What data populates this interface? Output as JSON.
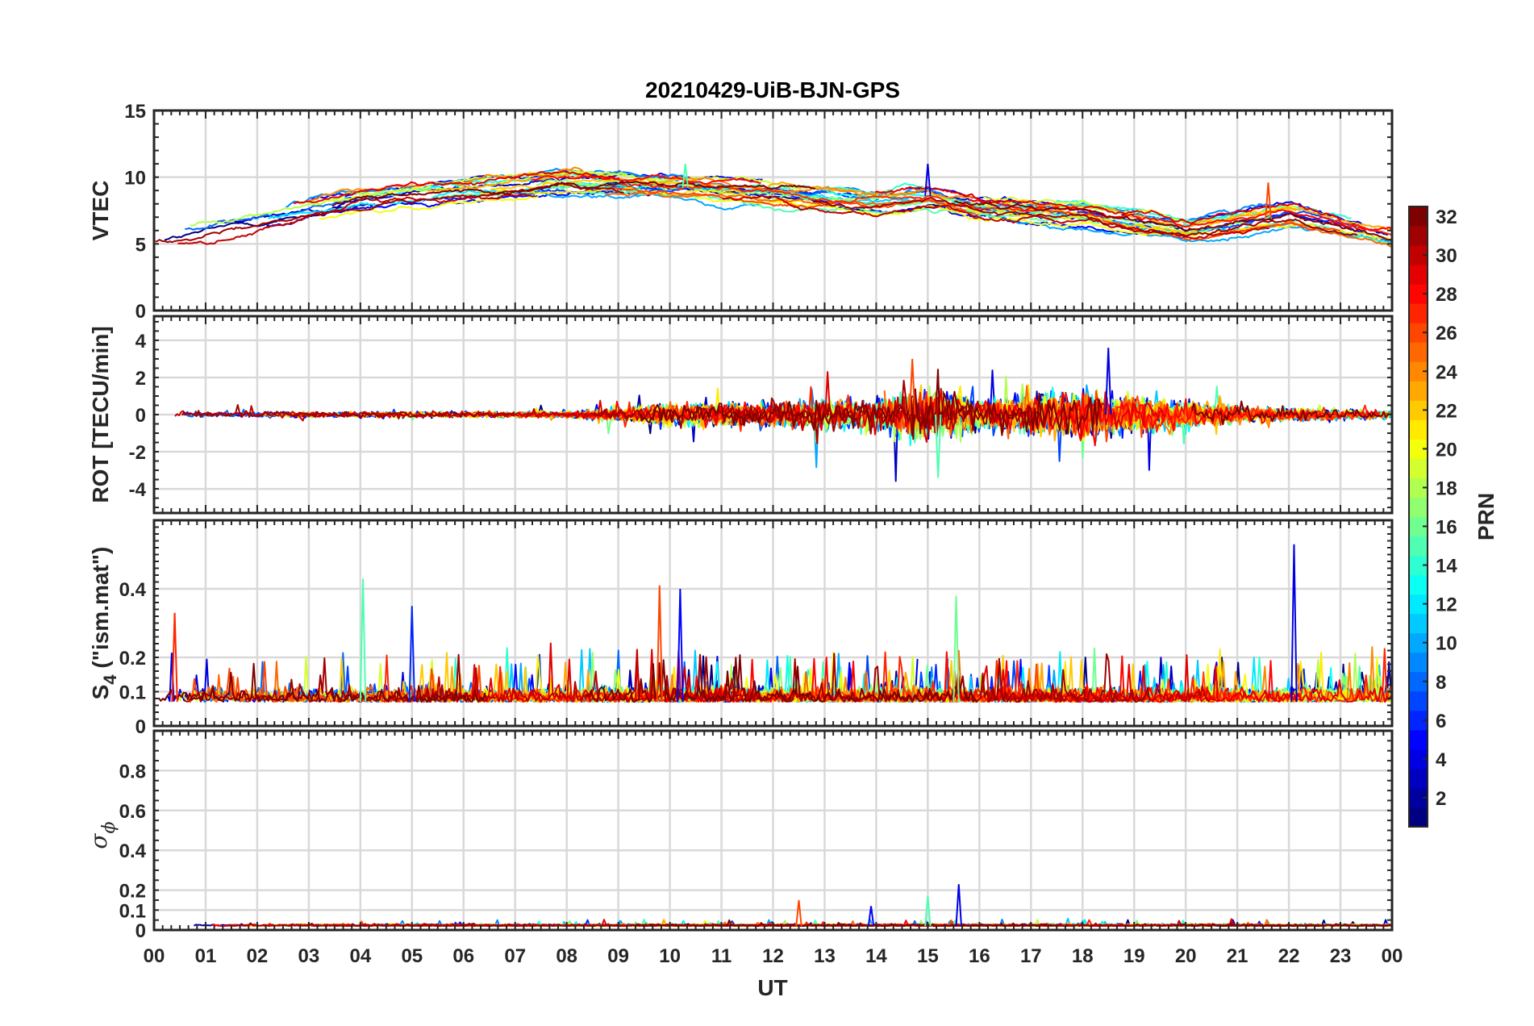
{
  "chart_data": {
    "type": "line",
    "title": "20210429-UiB-BJN-GPS",
    "xlabel": "UT",
    "x_ticks": [
      "00",
      "01",
      "02",
      "03",
      "04",
      "05",
      "06",
      "07",
      "08",
      "09",
      "10",
      "11",
      "12",
      "13",
      "14",
      "15",
      "16",
      "17",
      "18",
      "19",
      "20",
      "21",
      "22",
      "23",
      "00"
    ],
    "xlim": [
      0,
      24
    ],
    "colorbar": {
      "label": "PRN",
      "range": [
        1,
        32
      ],
      "ticks": [
        "2",
        "4",
        "6",
        "8",
        "10",
        "12",
        "14",
        "16",
        "18",
        "20",
        "22",
        "24",
        "26",
        "28",
        "30",
        "32"
      ],
      "colormap": "jet"
    },
    "panels": [
      {
        "id": "vtec",
        "ylabel": "VTEC",
        "ylim": [
          0,
          15
        ],
        "y_ticks": [
          "0",
          "5",
          "10",
          "15"
        ],
        "y_tick_values": [
          0,
          5,
          10,
          15
        ],
        "envelope": {
          "hours": [
            0,
            2,
            4,
            6,
            8,
            10,
            12,
            14,
            15,
            16,
            18,
            20,
            22,
            24
          ],
          "mean_vtec": [
            5.5,
            6.8,
            8.2,
            8.9,
            9.7,
            9.3,
            8.8,
            8.2,
            8.6,
            7.8,
            7.4,
            6.0,
            7.2,
            5.6
          ]
        },
        "notable_peaks": [
          {
            "hour": 15.0,
            "value": 11.0
          },
          {
            "hour": 10.3,
            "value": 11.0
          },
          {
            "hour": 21.6,
            "value": 9.6
          }
        ]
      },
      {
        "id": "rot",
        "ylabel": "ROT [TECU/min]",
        "ylim": [
          -5.3,
          5.3
        ],
        "y_ticks": [
          "4",
          "2",
          "0",
          "-2",
          "-4"
        ],
        "y_tick_values": [
          4,
          2,
          0,
          -2,
          -4
        ],
        "activity": {
          "hours": [
            0,
            4,
            8,
            10,
            12,
            14,
            15,
            16,
            18,
            19,
            21,
            24
          ],
          "amplitude": [
            0.3,
            0.3,
            0.3,
            1.0,
            1.2,
            1.6,
            2.6,
            1.6,
            2.4,
            1.8,
            0.8,
            0.4
          ]
        },
        "notable_peaks": [
          {
            "hour": 18.5,
            "value": 3.6
          },
          {
            "hour": 15.2,
            "value": -3.4
          },
          {
            "hour": 14.7,
            "value": 3.0
          }
        ]
      },
      {
        "id": "s4",
        "ylabel_main": "S",
        "ylabel_sub": "4",
        "ylabel_rest": " (\"ism.mat\")",
        "ylim": [
          0,
          0.6
        ],
        "y_ticks": [
          "0",
          "0.1",
          "0.2",
          "0.4"
        ],
        "y_tick_values": [
          0,
          0.1,
          0.2,
          0.4
        ],
        "baseline": 0.07,
        "notable_peaks": [
          {
            "hour": 22.1,
            "value": 0.53
          },
          {
            "hour": 4.05,
            "value": 0.43
          },
          {
            "hour": 9.8,
            "value": 0.41
          },
          {
            "hour": 10.2,
            "value": 0.4
          },
          {
            "hour": 15.55,
            "value": 0.38
          },
          {
            "hour": 0.4,
            "value": 0.33
          },
          {
            "hour": 5.0,
            "value": 0.35
          }
        ]
      },
      {
        "id": "sigma_phi",
        "ylabel_main": "σ",
        "ylabel_sub": "ϕ",
        "ylim": [
          0,
          1.0
        ],
        "y_ticks": [
          "0",
          "0.1",
          "0.2",
          "0.4",
          "0.6",
          "0.8"
        ],
        "y_tick_values": [
          0,
          0.1,
          0.2,
          0.4,
          0.6,
          0.8
        ],
        "baseline": 0.02,
        "notable_peaks": [
          {
            "hour": 15.6,
            "value": 0.23
          },
          {
            "hour": 15.0,
            "value": 0.17
          },
          {
            "hour": 12.5,
            "value": 0.15
          },
          {
            "hour": 13.9,
            "value": 0.12
          }
        ]
      }
    ],
    "n_satellites": 32
  }
}
